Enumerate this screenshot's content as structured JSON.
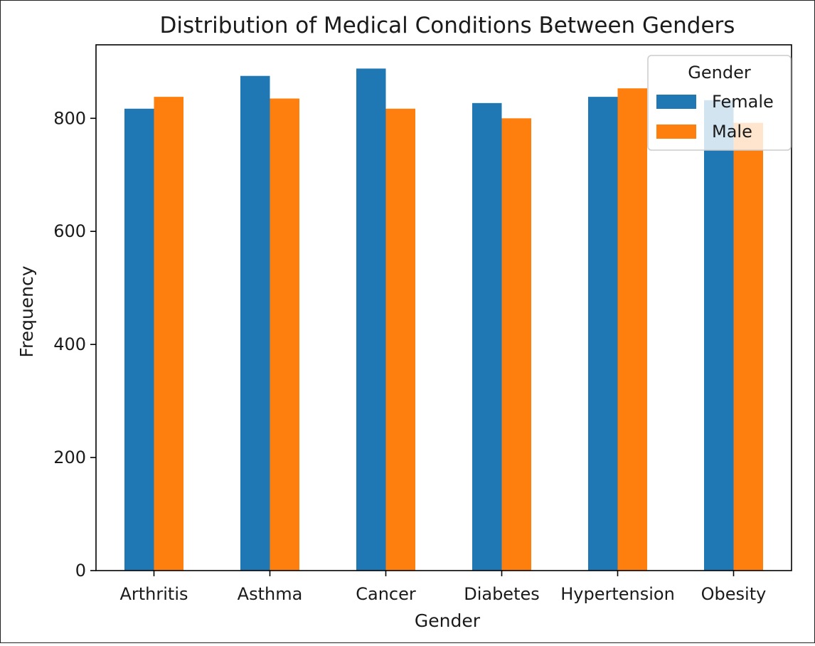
{
  "chart_data": {
    "type": "bar",
    "title": "Distribution of Medical Conditions Between Genders",
    "xlabel": "Gender",
    "ylabel": "Frequency",
    "categories": [
      "Arthritis",
      "Asthma",
      "Cancer",
      "Diabetes",
      "Hypertension",
      "Obesity"
    ],
    "series": [
      {
        "name": "Female",
        "color": "#1f77b4",
        "values": [
          817,
          875,
          888,
          827,
          838,
          832
        ]
      },
      {
        "name": "Male",
        "color": "#ff7f0e",
        "values": [
          838,
          835,
          817,
          800,
          853,
          792
        ]
      }
    ],
    "ylim": [
      0,
      930
    ],
    "yticks": [
      0,
      200,
      400,
      600,
      800
    ],
    "legend": {
      "title": "Gender",
      "placement": "top-right"
    },
    "grid": false
  }
}
